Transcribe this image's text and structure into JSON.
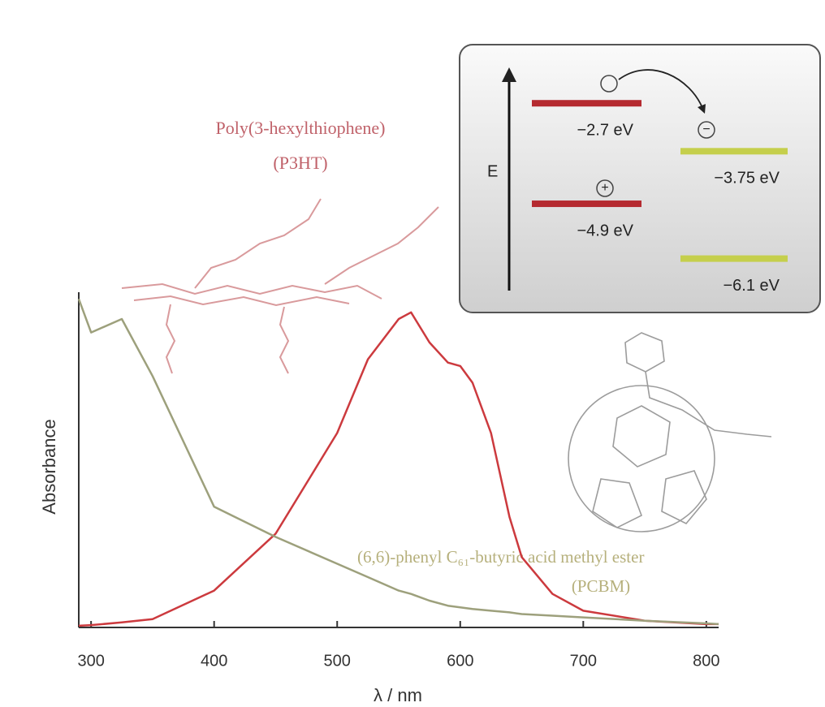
{
  "chart_data": {
    "type": "line",
    "x_label": "λ / nm",
    "y_label": "Absorbance",
    "annotations": [
      "Poly(3-hexylthiophene)",
      "(6,6)-phenyl C₆₁-butyric acid methyl ester"
    ],
    "x": [
      290,
      300,
      325,
      350,
      400,
      450,
      500,
      525,
      550,
      560,
      575,
      590,
      600,
      610,
      625,
      640,
      650,
      675,
      700,
      750,
      800,
      810
    ],
    "series": [
      {
        "name": "(P3HT)",
        "color": "#cc3a3e",
        "values": [
          0.005,
          0.007,
          0.015,
          0.025,
          0.11,
          0.28,
          0.58,
          0.8,
          0.92,
          0.94,
          0.85,
          0.79,
          0.78,
          0.73,
          0.58,
          0.33,
          0.21,
          0.1,
          0.05,
          0.02,
          0.01,
          0.01
        ]
      },
      {
        "name": "(PCBM)",
        "color": "#9da07c",
        "values": [
          0.98,
          0.88,
          0.92,
          0.75,
          0.36,
          0.27,
          0.19,
          0.15,
          0.11,
          0.1,
          0.08,
          0.065,
          0.06,
          0.055,
          0.05,
          0.045,
          0.04,
          0.035,
          0.03,
          0.02,
          0.012,
          0.01
        ]
      }
    ],
    "xlim": [
      290,
      810
    ],
    "ylim": [
      0,
      1
    ],
    "xticks": [
      300,
      400,
      500,
      600,
      700,
      800
    ]
  },
  "inset": {
    "axis_label": "E",
    "ylim": [
      -6.8,
      -1.95
    ],
    "levels": [
      {
        "value": -2.7,
        "label": "−2.7 eV",
        "color": "#b52a30",
        "column": 0
      },
      {
        "value": -4.9,
        "label": "−4.9 eV",
        "color": "#b52a30",
        "column": 0
      },
      {
        "value": -3.75,
        "label": "−3.75 eV",
        "color": "#c5cf4c",
        "column": 1
      },
      {
        "value": -6.1,
        "label": "−6.1 eV",
        "color": "#c5cf4c",
        "column": 1
      }
    ],
    "electron": "−",
    "hole": "+"
  }
}
